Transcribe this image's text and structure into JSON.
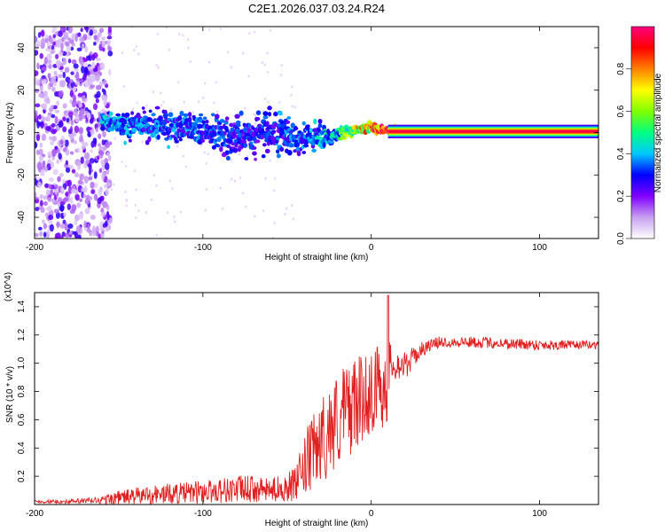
{
  "title": "C2E1.2026.037.03.24.R24",
  "chart_data": [
    {
      "type": "heatmap",
      "name": "spectrogram",
      "xlabel": "Height of straight line (km)",
      "ylabel": "Frequency (Hz)",
      "xlim": [
        -200,
        135
      ],
      "ylim": [
        -50,
        50
      ],
      "xticks": [
        -200,
        -100,
        0,
        100
      ],
      "yticks": [
        -40,
        -20,
        0,
        20,
        40
      ],
      "colorbar": {
        "label": "Normalized spectral amplitude",
        "range": [
          0,
          1
        ],
        "ticks": [
          0.0,
          0.2,
          0.4,
          0.6,
          0.8
        ],
        "colors": [
          "#ffffff",
          "#c8a0f0",
          "#8000ff",
          "#0000ff",
          "#00c8ff",
          "#00ff80",
          "#80ff00",
          "#ffff00",
          "#ff8000",
          "#ff0000",
          "#ff0080"
        ]
      },
      "features": {
        "noise_region_x": [
          -200,
          -155
        ],
        "signal_band": [
          {
            "x": -160,
            "f_center": 5,
            "f_width": 6,
            "amplitude": 0.35
          },
          {
            "x": -140,
            "f_center": 4,
            "f_width": 10,
            "amplitude": 0.3
          },
          {
            "x": -120,
            "f_center": 3,
            "f_width": 10,
            "amplitude": 0.3
          },
          {
            "x": -100,
            "f_center": 2,
            "f_width": 10,
            "amplitude": 0.3
          },
          {
            "x": -80,
            "f_center": -2,
            "f_width": 14,
            "amplitude": 0.25
          },
          {
            "x": -60,
            "f_center": 0,
            "f_width": 14,
            "amplitude": 0.28
          },
          {
            "x": -40,
            "f_center": -3,
            "f_width": 10,
            "amplitude": 0.3
          },
          {
            "x": -20,
            "f_center": -1,
            "f_width": 4,
            "amplitude": 0.4
          },
          {
            "x": -10,
            "f_center": 1,
            "f_width": 3,
            "amplitude": 0.6
          },
          {
            "x": 0,
            "f_center": 2,
            "f_width": 3,
            "amplitude": 0.7
          },
          {
            "x": 20,
            "f_center": 0.5,
            "f_width": 1.5,
            "amplitude": 0.95
          },
          {
            "x": 135,
            "f_center": 0.5,
            "f_width": 1.5,
            "amplitude": 0.95
          }
        ]
      }
    },
    {
      "type": "line",
      "name": "snr",
      "xlabel": "Height of straight line (km)",
      "ylabel": "SNR (10 * v/v)",
      "yunit": "(x10^4)",
      "xlim": [
        -200,
        135
      ],
      "ylim": [
        0,
        1.5
      ],
      "xticks": [
        -200,
        -100,
        0,
        100
      ],
      "yticks": [
        0.2,
        0.4,
        0.6,
        0.8,
        1.0,
        1.2,
        1.4
      ],
      "color": "#e02020",
      "envelope": {
        "x": [
          -200,
          -180,
          -160,
          -150,
          -130,
          -110,
          -90,
          -75,
          -60,
          -45,
          -38,
          -30,
          -20,
          -12,
          -5,
          0,
          5,
          10,
          12,
          20,
          30,
          40,
          60,
          80,
          100,
          120,
          135
        ],
        "mean": [
          0.02,
          0.02,
          0.03,
          0.05,
          0.07,
          0.08,
          0.1,
          0.11,
          0.1,
          0.14,
          0.3,
          0.45,
          0.6,
          0.7,
          0.75,
          0.8,
          0.85,
          0.85,
          1.0,
          0.98,
          1.1,
          1.15,
          1.15,
          1.14,
          1.13,
          1.13,
          1.13
        ],
        "spread": [
          0.01,
          0.015,
          0.03,
          0.05,
          0.07,
          0.08,
          0.09,
          0.1,
          0.08,
          0.12,
          0.25,
          0.3,
          0.35,
          0.35,
          0.3,
          0.3,
          0.3,
          0.35,
          0.12,
          0.1,
          0.05,
          0.04,
          0.04,
          0.04,
          0.04,
          0.03,
          0.03
        ]
      }
    }
  ]
}
